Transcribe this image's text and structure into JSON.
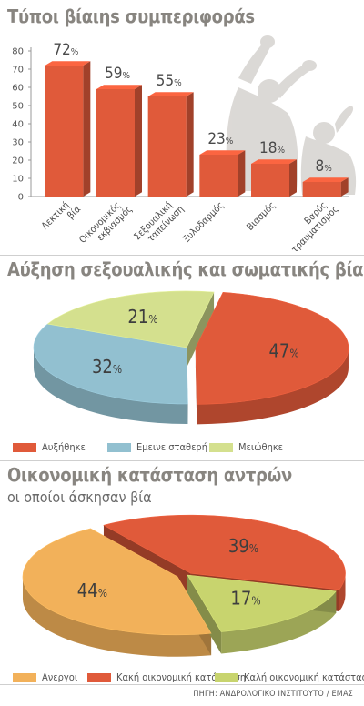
{
  "charts": [
    {
      "id": "violence-types",
      "title": "Τύποι βίαιηs συμπεριφοράs",
      "chart_data": {
        "type": "bar",
        "categories": [
          "Λεκτική βία",
          "Οικονομικός εκβιασμός",
          "Σεξουαλική ταπείνωση",
          "Ξυλοδαρμός",
          "Βιασμός",
          "Βαρύς τραυματισμός"
        ],
        "values": [
          72,
          59,
          55,
          23,
          18,
          8
        ],
        "value_suffix": "%",
        "ylim": [
          0,
          80
        ],
        "yticks": [
          0,
          10,
          20,
          30,
          40,
          50,
          60,
          70,
          80
        ],
        "bar_color": "#e05a3a"
      }
    },
    {
      "id": "violence-increase",
      "title": "Αύξηση σεξουαλικής και σωματικής βίας",
      "chart_data": {
        "type": "pie",
        "labels": [
          "Αυξήθηκε",
          "Εμεινε σταθερή",
          "Μειώθηκε"
        ],
        "values": [
          47,
          32,
          21
        ],
        "value_suffix": "%",
        "colors": [
          "#e05a3a",
          "#92c0d0",
          "#d4e08e"
        ],
        "legend_position": "bottom"
      }
    },
    {
      "id": "economic-status",
      "title": "Οικονομική κατάσταση αντρών",
      "subtitle": "οι οποίοι άσκησαν βία",
      "chart_data": {
        "type": "pie",
        "labels": [
          "Ανεργοι",
          "Κακή οικονομική κατάσταση",
          "Καλή οικονομική κατάσταση"
        ],
        "values": [
          44,
          39,
          17
        ],
        "value_suffix": "%",
        "colors": [
          "#f2b15a",
          "#e05a3a",
          "#c8d46e"
        ],
        "legend_position": "bottom"
      }
    }
  ],
  "source": "ΠΗΓΗ: ΑΝΔΡΟΛΟΓΙΚΟ ΙΝΣΤΙΤΟΥΤΟ / ΕΜΑΣ"
}
